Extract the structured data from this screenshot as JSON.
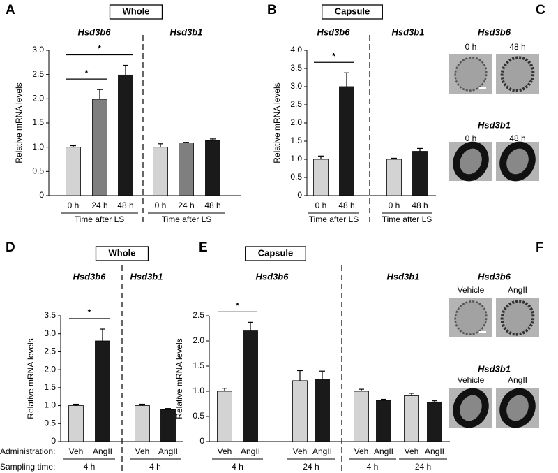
{
  "chart_data": [
    {
      "type": "bar",
      "panel": "A",
      "title": "Whole",
      "ylabel": "Relative mRNA levels",
      "ylim": [
        0,
        3
      ],
      "yticks": [
        0,
        0.5,
        {
          "value": 1,
          "label": "1.0"
        },
        1.5,
        {
          "value": 2,
          "label": "2.0"
        },
        2.5,
        {
          "value": 3,
          "label": "3.0"
        }
      ],
      "groups": [
        {
          "name": "Hsd3b6",
          "subgroups": [
            {
              "label": "Time after LS",
              "categories": [
                "0 h",
                "24 h",
                "48 h"
              ],
              "values": [
                1.0,
                1.99,
                2.49
              ],
              "errors": [
                0.03,
                0.2,
                0.2
              ],
              "colors": [
                "#d3d3d3",
                "#7f7f7f",
                "#1a1a1a"
              ],
              "brackets": [
                {
                  "label": "*",
                  "between": [
                    "0 h",
                    "24 h"
                  ]
                },
                {
                  "label": "*",
                  "between": [
                    "0 h",
                    "48 h"
                  ]
                }
              ]
            }
          ]
        },
        {
          "name": "Hsd3b1",
          "subgroups": [
            {
              "label": "Time after LS",
              "categories": [
                "0 h",
                "24 h",
                "48 h"
              ],
              "values": [
                1.0,
                1.09,
                1.14
              ],
              "errors": [
                0.07,
                0.01,
                0.03
              ],
              "colors": [
                "#d3d3d3",
                "#7f7f7f",
                "#1a1a1a"
              ],
              "brackets": []
            }
          ]
        }
      ]
    },
    {
      "type": "bar",
      "panel": "B",
      "title": "Capsule",
      "ylabel": "Relative mRNA levels",
      "ylim": [
        0,
        4
      ],
      "yticks": [
        0,
        0.5,
        {
          "value": 1,
          "label": "1.0"
        },
        1.5,
        {
          "value": 2,
          "label": "2.0"
        },
        2.5,
        {
          "value": 3,
          "label": "3.0"
        },
        3.5,
        {
          "value": 4,
          "label": "4.0"
        }
      ],
      "groups": [
        {
          "name": "Hsd3b6",
          "subgroups": [
            {
              "label": "Time after LS",
              "categories": [
                "0 h",
                "48 h"
              ],
              "values": [
                1.0,
                3.0
              ],
              "errors": [
                0.09,
                0.38
              ],
              "colors": [
                "#d3d3d3",
                "#1a1a1a"
              ],
              "brackets": [
                {
                  "label": "*",
                  "between": [
                    "0 h",
                    "48 h"
                  ]
                }
              ]
            }
          ]
        },
        {
          "name": "Hsd3b1",
          "subgroups": [
            {
              "label": "Time after LS",
              "categories": [
                "0 h",
                "48 h"
              ],
              "values": [
                1.0,
                1.22
              ],
              "errors": [
                0.03,
                0.08
              ],
              "colors": [
                "#d3d3d3",
                "#1a1a1a"
              ],
              "brackets": []
            }
          ]
        }
      ]
    },
    {
      "type": "bar",
      "panel": "D",
      "title": "Whole",
      "ylabel": "Relative mRNA levels",
      "row_labels": [
        "Administration:",
        "Sampling time:"
      ],
      "ylim": [
        0,
        3.5
      ],
      "yticks": [
        0,
        0.5,
        {
          "value": 1,
          "label": "1.0"
        },
        1.5,
        {
          "value": 2,
          "label": "2.0"
        },
        2.5,
        {
          "value": 3,
          "label": "3.0"
        },
        3.5
      ],
      "groups": [
        {
          "name": "Hsd3b6",
          "subgroups": [
            {
              "label": "4 h",
              "categories": [
                "Veh",
                "AngII"
              ],
              "values": [
                1.0,
                2.8
              ],
              "errors": [
                0.04,
                0.33
              ],
              "colors": [
                "#d3d3d3",
                "#1a1a1a"
              ],
              "brackets": [
                {
                  "label": "*",
                  "between": [
                    "Veh",
                    "AngII"
                  ]
                }
              ]
            }
          ]
        },
        {
          "name": "Hsd3b1",
          "subgroups": [
            {
              "label": "4 h",
              "categories": [
                "Veh",
                "AngII"
              ],
              "values": [
                1.0,
                0.89
              ],
              "errors": [
                0.04,
                0.03
              ],
              "colors": [
                "#d3d3d3",
                "#1a1a1a"
              ],
              "brackets": []
            }
          ]
        }
      ]
    },
    {
      "type": "bar",
      "panel": "E",
      "title": "Capsule",
      "ylabel": "Relative mRNA levels",
      "ylim": [
        0,
        2.5
      ],
      "yticks": [
        0,
        0.5,
        {
          "value": 1,
          "label": "1.0"
        },
        1.5,
        {
          "value": 2,
          "label": "2.0"
        },
        2.5
      ],
      "groups": [
        {
          "name": "Hsd3b6",
          "subgroups": [
            {
              "label": "4 h",
              "categories": [
                "Veh",
                "AngII"
              ],
              "values": [
                1.0,
                2.2
              ],
              "errors": [
                0.06,
                0.17
              ],
              "colors": [
                "#d3d3d3",
                "#1a1a1a"
              ],
              "brackets": [
                {
                  "label": "*",
                  "between": [
                    "Veh",
                    "AngII"
                  ]
                }
              ]
            },
            {
              "label": "24 h",
              "categories": [
                "Veh",
                "AngII"
              ],
              "values": [
                1.21,
                1.24
              ],
              "errors": [
                0.2,
                0.16
              ],
              "colors": [
                "#d3d3d3",
                "#1a1a1a"
              ],
              "brackets": []
            }
          ]
        },
        {
          "name": "Hsd3b1",
          "subgroups": [
            {
              "label": "4 h",
              "categories": [
                "Veh",
                "AngII"
              ],
              "values": [
                1.0,
                0.82
              ],
              "errors": [
                0.04,
                0.02
              ],
              "colors": [
                "#d3d3d3",
                "#1a1a1a"
              ],
              "brackets": []
            },
            {
              "label": "24 h",
              "categories": [
                "Veh",
                "AngII"
              ],
              "values": [
                0.91,
                0.78
              ],
              "errors": [
                0.05,
                0.03
              ],
              "colors": [
                "#d3d3d3",
                "#1a1a1a"
              ],
              "brackets": []
            }
          ]
        }
      ]
    }
  ],
  "image_panels": [
    {
      "letter": "C",
      "rows": [
        {
          "gene": "Hsd3b6",
          "labels": [
            "0 h",
            "48 h"
          ]
        },
        {
          "gene": "Hsd3b1",
          "labels": [
            "0 h",
            "48 h"
          ]
        }
      ]
    },
    {
      "letter": "F",
      "rows": [
        {
          "gene": "Hsd3b6",
          "labels": [
            "Vehicle",
            "AngII"
          ]
        },
        {
          "gene": "Hsd3b1",
          "labels": [
            "Vehicle",
            "AngII"
          ]
        }
      ]
    }
  ]
}
